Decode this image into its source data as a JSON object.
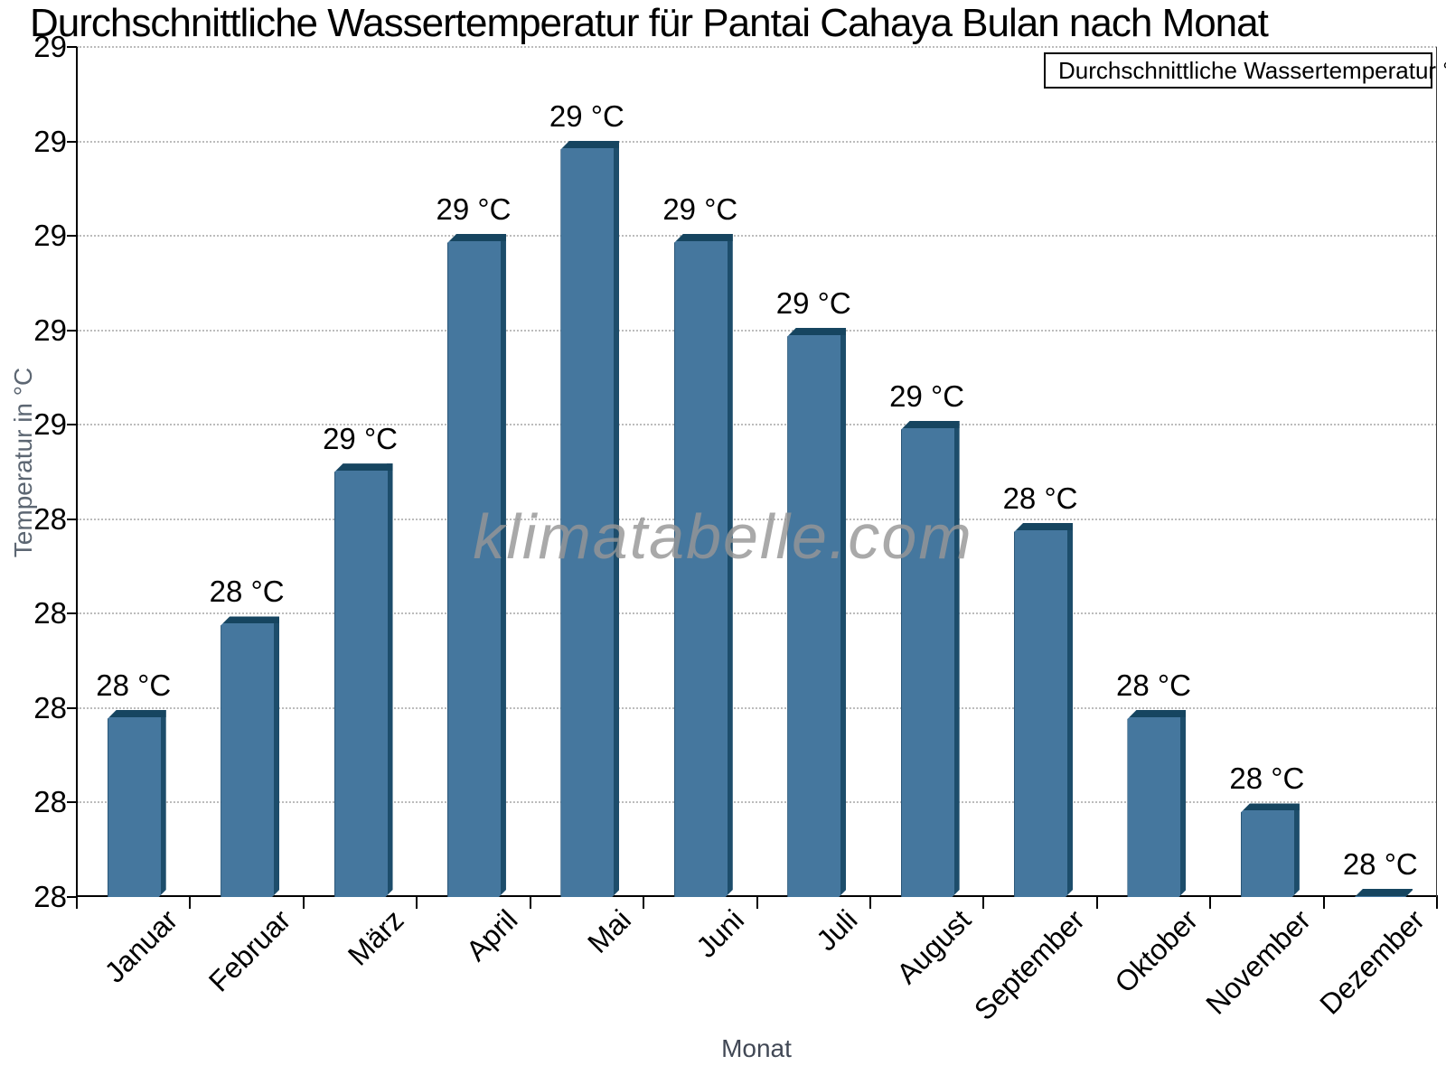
{
  "title": "Durchschnittliche Wassertemperatur für Pantai Cahaya Bulan nach Monat",
  "watermark": "klimatabelle.com",
  "legend": {
    "label": "Durchschnittliche Wassertemperatur °C"
  },
  "axes": {
    "x_title": "Monat",
    "y_title": "Temperatur in °C"
  },
  "chart_data": {
    "type": "bar",
    "title": "Durchschnittliche Wassertemperatur für Pantai Cahaya Bulan nach Monat",
    "xlabel": "Monat",
    "ylabel": "Temperatur in °C",
    "categories": [
      "Januar",
      "Februar",
      "März",
      "April",
      "Mai",
      "Juni",
      "Juli",
      "August",
      "September",
      "Oktober",
      "November",
      "Dezember"
    ],
    "values": [
      28.22,
      28.33,
      28.51,
      28.78,
      28.89,
      28.78,
      28.67,
      28.56,
      28.44,
      28.22,
      28.11,
      28.01
    ],
    "value_labels": [
      "28 °C",
      "28 °C",
      "29 °C",
      "29 °C",
      "29 °C",
      "29 °C",
      "29 °C",
      "29 °C",
      "28 °C",
      "28 °C",
      "28 °C",
      "28 °C"
    ],
    "unit": "°C",
    "ylim": [
      28,
      29
    ],
    "y_tick_labels": [
      "29",
      "29",
      "29",
      "29",
      "29",
      "28",
      "28",
      "28",
      "28",
      "28"
    ],
    "grid": "horizontal-dotted",
    "legend_position": "top-right",
    "legend_label": "Durchschnittliche Wassertemperatur °C",
    "colors": {
      "bar_face": "#45779e",
      "bar_side": "#1d4d6b",
      "bar_top": "#164560",
      "legend_swatch": "#4d7ba3",
      "grid": "#bcbcbc",
      "axis": "#000000"
    }
  }
}
